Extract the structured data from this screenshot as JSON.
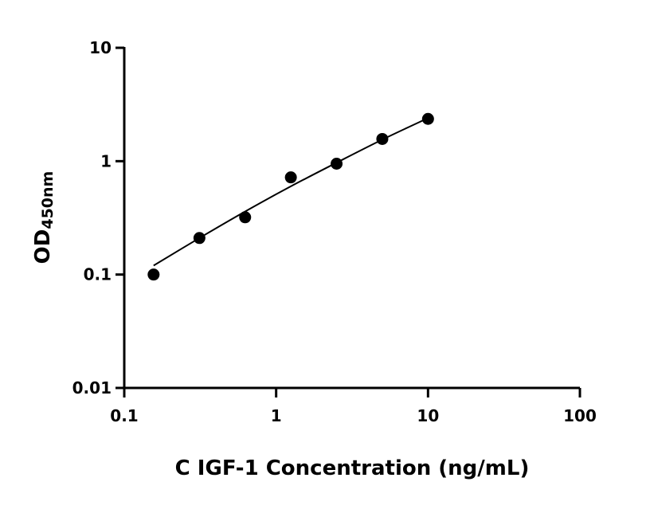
{
  "chart_data": {
    "type": "scatter",
    "title": "",
    "xlabel": "C IGF-1 Concentration (ng/mL)",
    "ylabel_main": "OD",
    "ylabel_sub": "450nm",
    "x_scale": "log",
    "y_scale": "log",
    "xlim": [
      0.1,
      100
    ],
    "ylim": [
      0.01,
      10
    ],
    "x_ticks": [
      {
        "value": 0.1,
        "label": "0.1"
      },
      {
        "value": 1,
        "label": "1"
      },
      {
        "value": 10,
        "label": "10"
      },
      {
        "value": 100,
        "label": "100"
      }
    ],
    "y_ticks": [
      {
        "value": 0.01,
        "label": "0.01"
      },
      {
        "value": 0.1,
        "label": "0.1"
      },
      {
        "value": 1,
        "label": "1"
      },
      {
        "value": 10,
        "label": "10"
      }
    ],
    "grid": false,
    "points": [
      {
        "x": 0.156,
        "y": 0.1
      },
      {
        "x": 0.3125,
        "y": 0.21
      },
      {
        "x": 0.625,
        "y": 0.32
      },
      {
        "x": 1.25,
        "y": 0.72
      },
      {
        "x": 2.5,
        "y": 0.95
      },
      {
        "x": 5,
        "y": 1.57
      },
      {
        "x": 10,
        "y": 2.36
      }
    ],
    "fit_curve": [
      {
        "x": 0.156,
        "y": 0.12
      },
      {
        "x": 0.3125,
        "y": 0.21
      },
      {
        "x": 0.625,
        "y": 0.36
      },
      {
        "x": 1.25,
        "y": 0.6
      },
      {
        "x": 2.5,
        "y": 0.97
      },
      {
        "x": 5,
        "y": 1.55
      },
      {
        "x": 10,
        "y": 2.4
      }
    ],
    "colors": {
      "marker": "#000000",
      "line": "#000000"
    }
  }
}
